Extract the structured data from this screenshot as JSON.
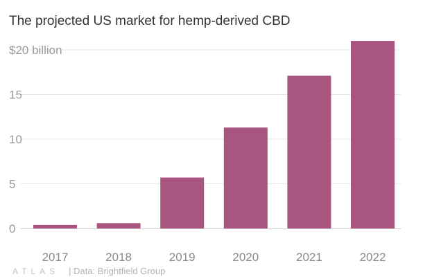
{
  "chart_data": {
    "type": "bar",
    "title": "The projected US market for hemp-derived CBD",
    "categories": [
      "2017",
      "2018",
      "2019",
      "2020",
      "2021",
      "2022"
    ],
    "values": [
      0.4,
      0.6,
      5.7,
      11.3,
      17.1,
      21.0
    ],
    "ylim": [
      0,
      20
    ],
    "yticks": [
      0,
      5,
      10,
      15,
      20
    ],
    "ytick_labels": [
      "0",
      "5",
      "10",
      "15",
      "$20 billion"
    ],
    "xlabel": "",
    "ylabel": "",
    "grid": true,
    "bar_color": "#a8557f"
  },
  "footer": {
    "brand": "ATLAS",
    "source": "| Data: Brightfield Group"
  }
}
